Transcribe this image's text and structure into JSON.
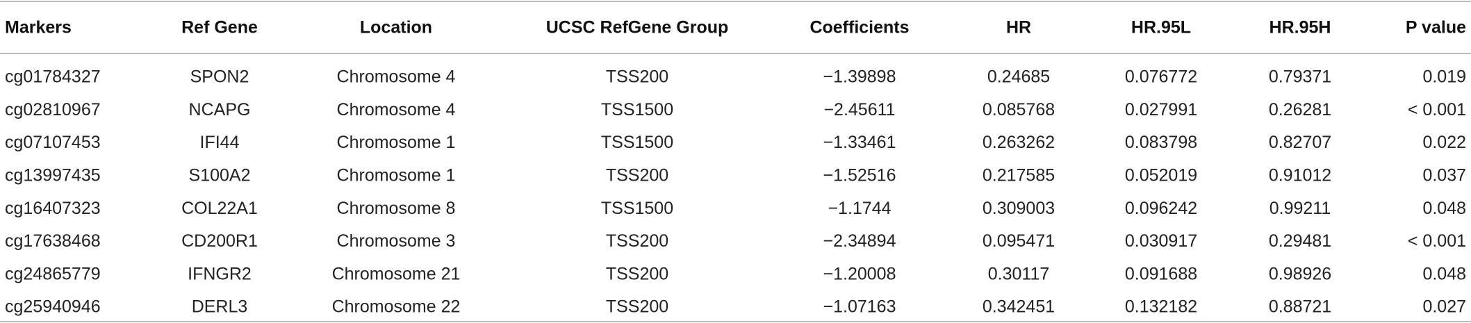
{
  "table": {
    "header": [
      "Markers",
      "Ref Gene",
      "Location",
      "UCSC RefGene Group",
      "Coefficients",
      "HR",
      "HR.95L",
      "HR.95H",
      "P value"
    ],
    "rows": [
      [
        "cg01784327",
        "SPON2",
        "Chromosome 4",
        "TSS200",
        "−1.39898",
        "0.24685",
        "0.076772",
        "0.79371",
        "0.019"
      ],
      [
        "cg02810967",
        "NCAPG",
        "Chromosome 4",
        "TSS1500",
        "−2.45611",
        "0.085768",
        "0.027991",
        "0.26281",
        "< 0.001"
      ],
      [
        "cg07107453",
        "IFI44",
        "Chromosome 1",
        "TSS1500",
        "−1.33461",
        "0.263262",
        "0.083798",
        "0.82707",
        "0.022"
      ],
      [
        "cg13997435",
        "S100A2",
        "Chromosome 1",
        "TSS200",
        "−1.52516",
        "0.217585",
        "0.052019",
        "0.91012",
        "0.037"
      ],
      [
        "cg16407323",
        "COL22A1",
        "Chromosome 8",
        "TSS1500",
        "−1.1744",
        "0.309003",
        "0.096242",
        "0.99211",
        "0.048"
      ],
      [
        "cg17638468",
        "CD200R1",
        "Chromosome 3",
        "TSS200",
        "−2.34894",
        "0.095471",
        "0.030917",
        "0.29481",
        "< 0.001"
      ],
      [
        "cg24865779",
        "IFNGR2",
        "Chromosome 21",
        "TSS200",
        "−1.20008",
        "0.30117",
        "0.091688",
        "0.98926",
        "0.048"
      ],
      [
        "cg25940946",
        "DERL3",
        "Chromosome 22",
        "TSS200",
        "−1.07163",
        "0.342451",
        "0.132182",
        "0.88721",
        "0.027"
      ]
    ]
  }
}
